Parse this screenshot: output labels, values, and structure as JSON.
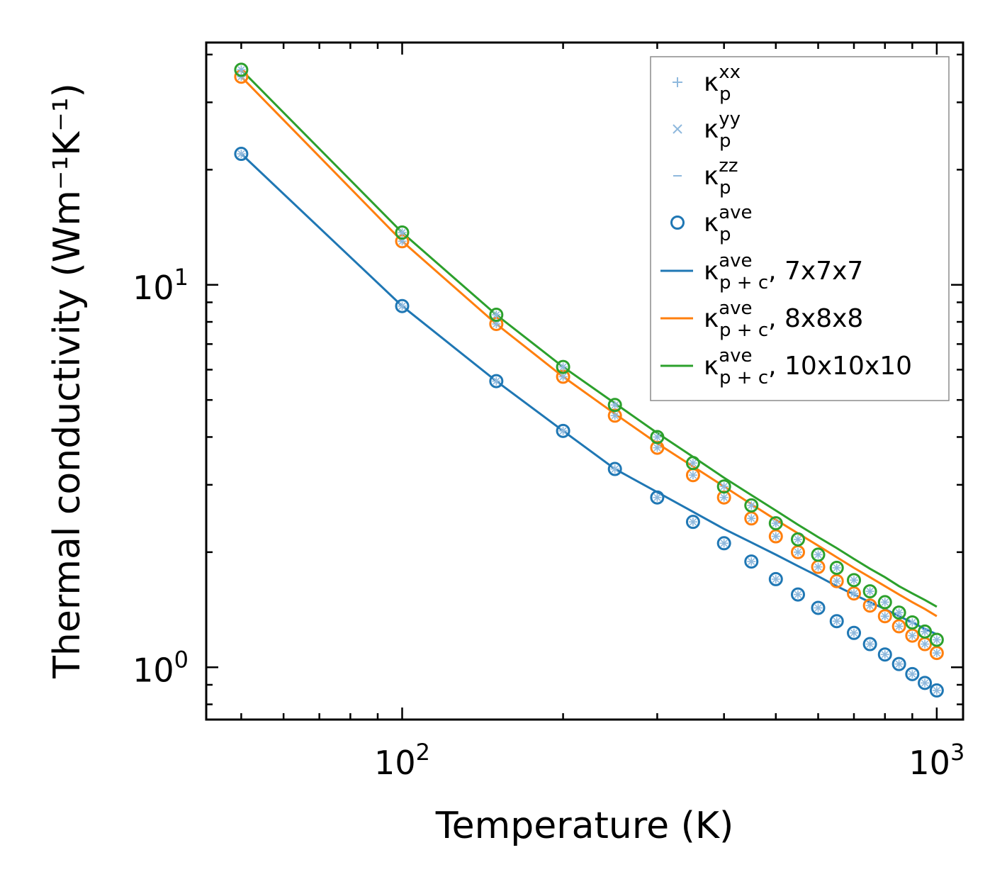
{
  "chart_data": {
    "type": "scatter",
    "xscale": "log",
    "yscale": "log",
    "xlabel": "Temperature (K)",
    "ylabel": "Thermal conductivity (Wm⁻¹K⁻¹)",
    "xlim": [
      43,
      1120
    ],
    "ylim": [
      0.73,
      43
    ],
    "x_ticks": [
      {
        "value": 100,
        "base": "10",
        "exp": "2"
      },
      {
        "value": 1000,
        "base": "10",
        "exp": "3"
      }
    ],
    "y_ticks": [
      {
        "value": 1,
        "base": "10",
        "exp": "0"
      },
      {
        "value": 10,
        "base": "10",
        "exp": "1"
      }
    ],
    "x": [
      50,
      100,
      150,
      200,
      250,
      300,
      350,
      400,
      450,
      500,
      550,
      600,
      650,
      700,
      750,
      800,
      850,
      900,
      950,
      1000
    ],
    "series": [
      {
        "name": "7x7x7",
        "color": "#1f77b4",
        "points": [
          22.0,
          8.8,
          5.6,
          4.15,
          3.3,
          2.78,
          2.4,
          2.11,
          1.89,
          1.7,
          1.55,
          1.43,
          1.32,
          1.23,
          1.15,
          1.08,
          1.02,
          0.96,
          0.91,
          0.87
        ],
        "line": [
          22.0,
          8.8,
          5.6,
          4.15,
          3.3,
          2.87,
          2.55,
          2.3,
          2.12,
          1.97,
          1.84,
          1.73,
          1.63,
          1.55,
          1.48,
          1.42,
          1.36,
          1.31,
          1.26,
          1.22
        ]
      },
      {
        "name": "8x8x8",
        "color": "#ff7f0e",
        "points": [
          35.0,
          13.0,
          7.9,
          5.75,
          4.55,
          3.75,
          3.18,
          2.78,
          2.45,
          2.2,
          2.0,
          1.83,
          1.68,
          1.56,
          1.45,
          1.36,
          1.28,
          1.21,
          1.15,
          1.09
        ],
        "line": [
          35.0,
          13.0,
          7.9,
          5.75,
          4.6,
          3.85,
          3.35,
          2.97,
          2.67,
          2.43,
          2.24,
          2.08,
          1.94,
          1.82,
          1.72,
          1.63,
          1.55,
          1.48,
          1.42,
          1.36
        ]
      },
      {
        "name": "10x10x10",
        "color": "#2ca02c",
        "points": [
          36.5,
          13.7,
          8.35,
          6.1,
          4.85,
          4.0,
          3.42,
          2.97,
          2.65,
          2.38,
          2.16,
          1.97,
          1.82,
          1.69,
          1.58,
          1.48,
          1.39,
          1.31,
          1.24,
          1.18
        ],
        "line": [
          36.5,
          13.7,
          8.35,
          6.1,
          4.9,
          4.1,
          3.55,
          3.13,
          2.82,
          2.57,
          2.36,
          2.19,
          2.05,
          1.92,
          1.81,
          1.72,
          1.63,
          1.56,
          1.5,
          1.44
        ]
      }
    ],
    "legend": {
      "position": "top-right",
      "entries": [
        {
          "marker": "plus",
          "symbol": "κ",
          "sub": "p",
          "sup": "xx",
          "suffix": ""
        },
        {
          "marker": "x",
          "symbol": "κ",
          "sub": "p",
          "sup": "yy",
          "suffix": ""
        },
        {
          "marker": "dash",
          "symbol": "κ",
          "sub": "p",
          "sup": "zz",
          "suffix": ""
        },
        {
          "marker": "circle",
          "symbol": "κ",
          "sub": "p",
          "sup": "ave",
          "suffix": ""
        },
        {
          "marker": "line",
          "color": "#1f77b4",
          "symbol": "κ",
          "sub": "p + c",
          "sup": "ave",
          "suffix": ", 7x7x7"
        },
        {
          "marker": "line",
          "color": "#ff7f0e",
          "symbol": "κ",
          "sub": "p + c",
          "sup": "ave",
          "suffix": ", 8x8x8"
        },
        {
          "marker": "line",
          "color": "#2ca02c",
          "symbol": "κ",
          "sub": "p + c",
          "sup": "ave",
          "suffix": ", 10x10x10"
        }
      ]
    },
    "marker_light_color": "#8fb9dd"
  }
}
